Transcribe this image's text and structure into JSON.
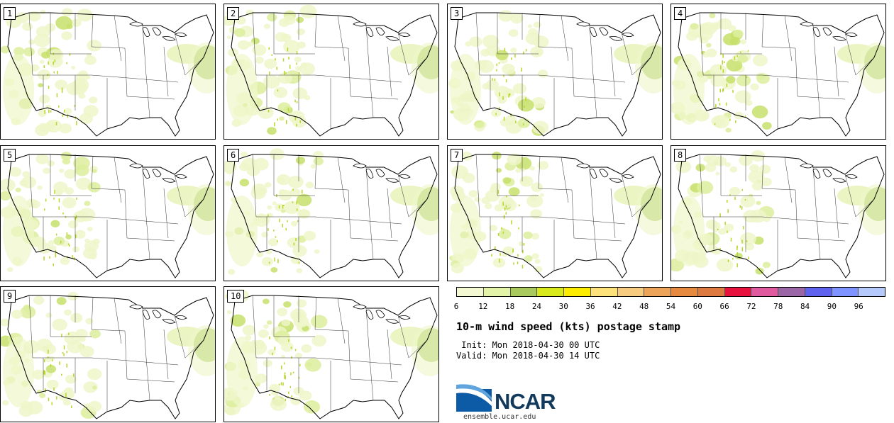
{
  "members": [
    "1",
    "2",
    "3",
    "4",
    "5",
    "6",
    "7",
    "8",
    "9",
    "10"
  ],
  "colorbar": {
    "colors": [
      "#f4f9d3",
      "#e3f3a8",
      "#a9c95e",
      "#d8ea1b",
      "#fbec00",
      "#fde27c",
      "#f7cb80",
      "#eba45a",
      "#e58a3e",
      "#dc7a40",
      "#e8123e",
      "#e05aa0",
      "#9b66a6",
      "#5f63ee",
      "#7f94ff",
      "#b5c9fb"
    ],
    "ticks": [
      "6",
      "12",
      "18",
      "24",
      "30",
      "36",
      "42",
      "48",
      "54",
      "60",
      "66",
      "72",
      "78",
      "84",
      "90",
      "96"
    ]
  },
  "title": "10-m wind speed (kts) postage stamp",
  "init": " Init: Mon 2018-04-30 00 UTC",
  "valid": "Valid: Mon 2018-04-30 14 UTC",
  "logo": {
    "text": "NCAR",
    "website": "ensemble.ucar.edu"
  }
}
